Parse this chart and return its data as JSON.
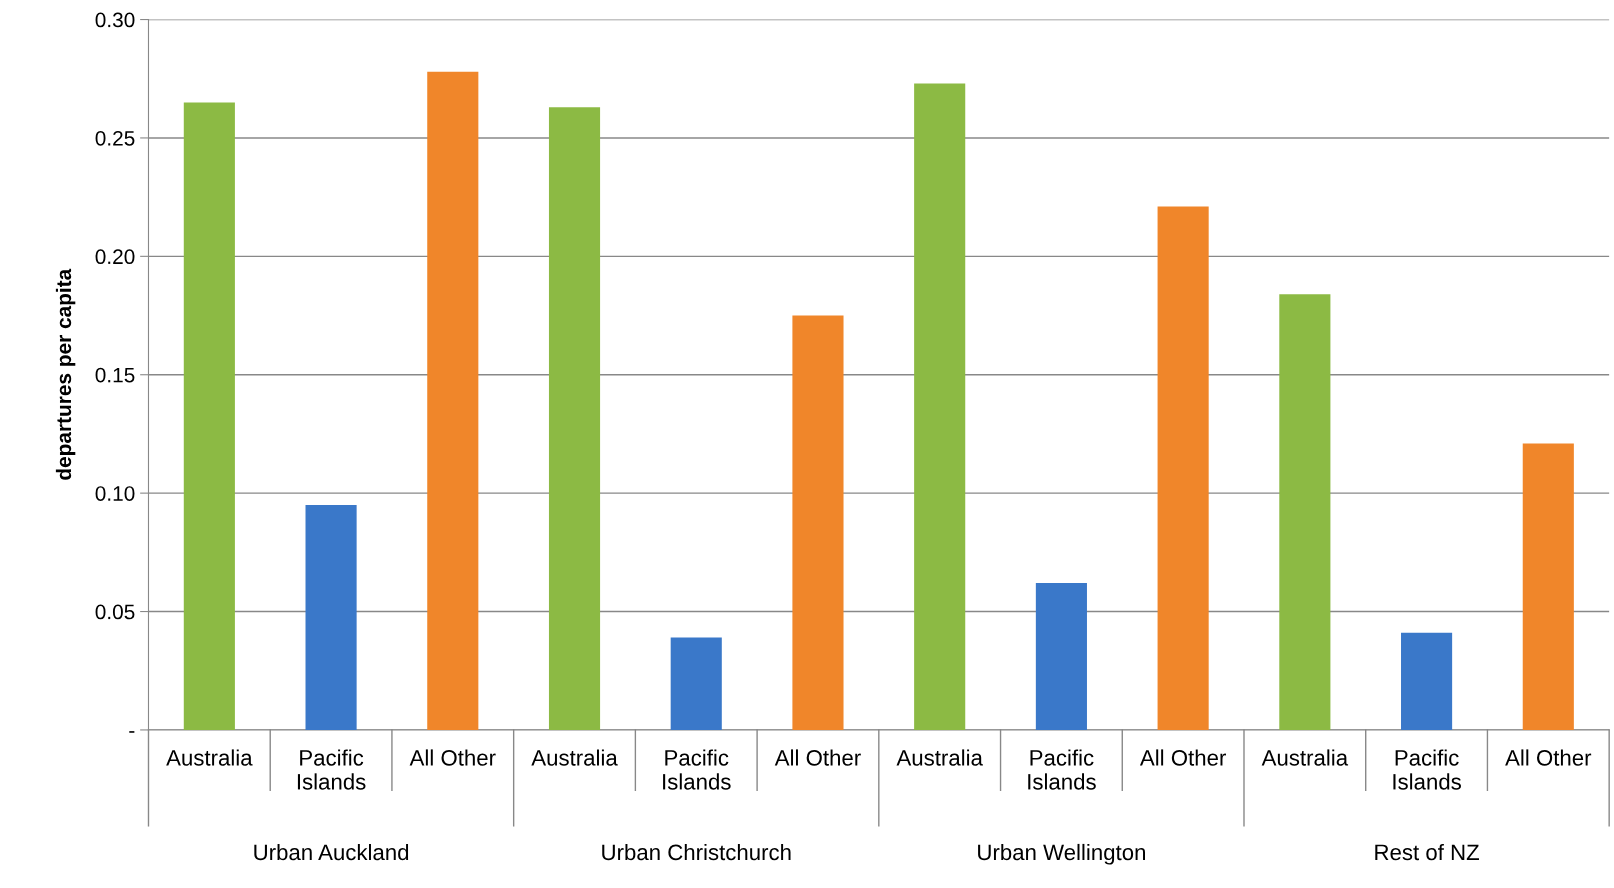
{
  "chart_data": {
    "type": "bar",
    "ylabel": "departures per capita",
    "categories": [
      "Australia",
      "Pacific\nIslands",
      "All Other",
      "Australia",
      "Pacific\nIslands",
      "All Other",
      "Australia",
      "Pacific\nIslands",
      "All Other",
      "Australia",
      "Pacific\nIslands",
      "All Other"
    ],
    "values": [
      0.265,
      0.095,
      0.278,
      0.263,
      0.039,
      0.175,
      0.273,
      0.062,
      0.221,
      0.184,
      0.041,
      0.121
    ],
    "colors": [
      "#8cba44",
      "#3a78c9",
      "#f0862a",
      "#8cba44",
      "#3a78c9",
      "#f0862a",
      "#8cba44",
      "#3a78c9",
      "#f0862a",
      "#8cba44",
      "#3a78c9",
      "#f0862a"
    ],
    "annotations": [
      "Urban Auckland",
      "Urban Christchurch",
      "Urban Wellington",
      "Rest of NZ"
    ],
    "ylim": [
      0,
      0.3
    ],
    "yticks": [
      {
        "value": 0,
        "label": "-"
      },
      {
        "value": 0.05,
        "label": "0.05"
      },
      {
        "value": 0.1,
        "label": "0.10"
      },
      {
        "value": 0.15,
        "label": "0.15"
      },
      {
        "value": 0.2,
        "label": "0.20"
      },
      {
        "value": 0.25,
        "label": "0.25"
      },
      {
        "value": 0.3,
        "label": "0.30"
      }
    ],
    "grid": "y"
  }
}
